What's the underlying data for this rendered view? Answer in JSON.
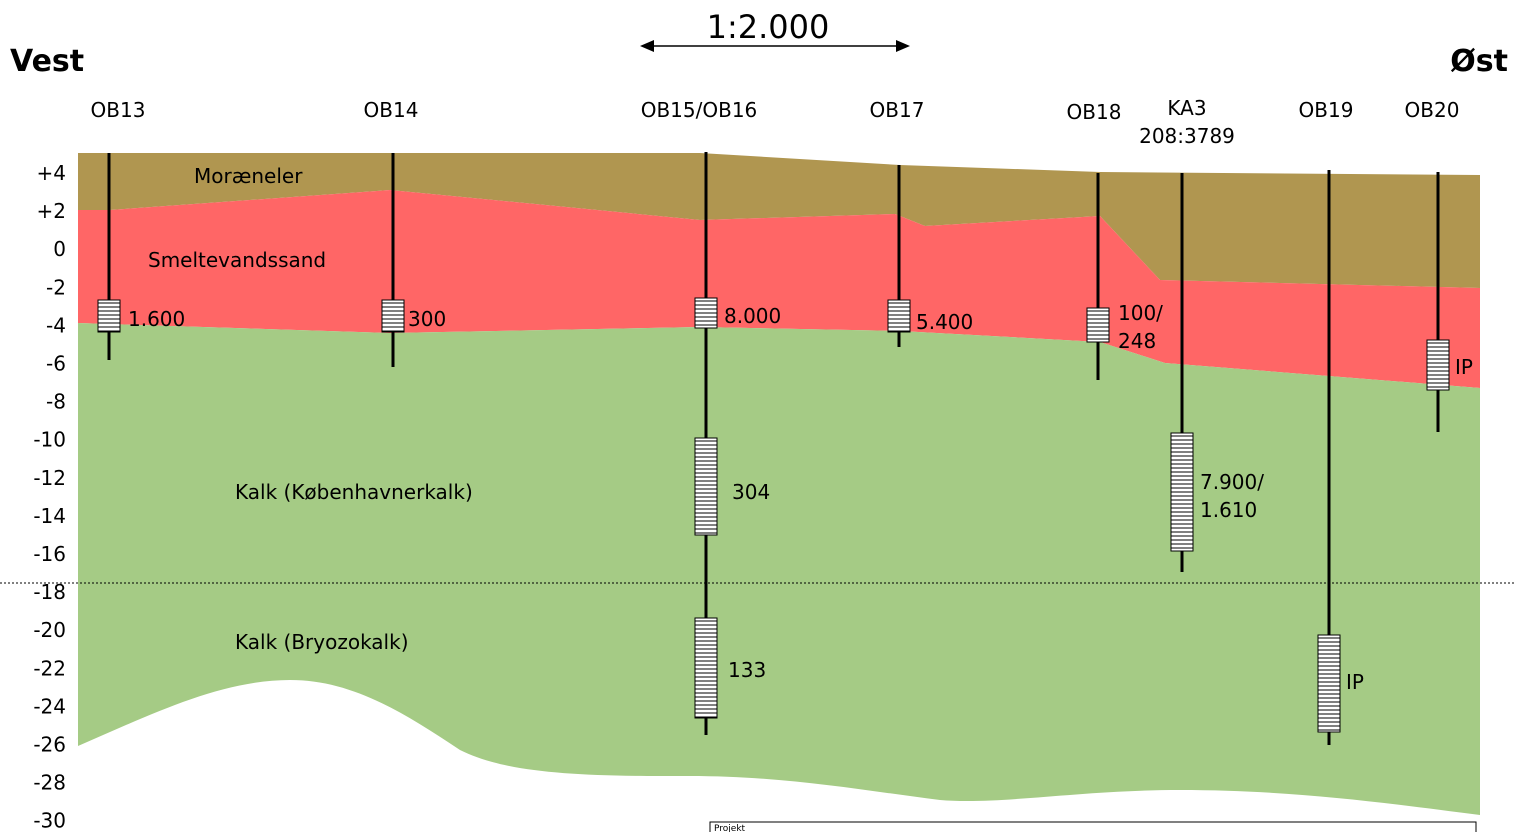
{
  "header": {
    "west": "Vest",
    "east": "Øst",
    "scale": "1:2.000"
  },
  "elevation_labels": [
    "+4",
    "+2",
    "0",
    "-2",
    "-4",
    "-6",
    "-8",
    "-10",
    "-12",
    "-14",
    "-16",
    "-18",
    "-20",
    "-22",
    "-24",
    "-26",
    "-28",
    "-30"
  ],
  "layers": [
    "Moræneler",
    "Smeltevandssand",
    "Kalk (Københavnerkalk)",
    "Kalk (Bryozokalk)"
  ],
  "wells": [
    {
      "name": "OB13",
      "screens": [
        "1.600"
      ]
    },
    {
      "name": "OB14",
      "screens": [
        "300"
      ]
    },
    {
      "name": "OB15/OB16",
      "screens": [
        "8.000",
        "304",
        "133"
      ]
    },
    {
      "name": "OB17",
      "screens": [
        "5.400"
      ]
    },
    {
      "name": "OB18",
      "screens": [
        "100/\n248"
      ]
    },
    {
      "name": "KA3\n208:3789",
      "screens": [
        "7.900/\n1.610"
      ]
    },
    {
      "name": "OB19",
      "screens": [
        "IP"
      ]
    },
    {
      "name": "OB20",
      "screens": [
        "IP"
      ]
    }
  ],
  "footer": "Projekt"
}
